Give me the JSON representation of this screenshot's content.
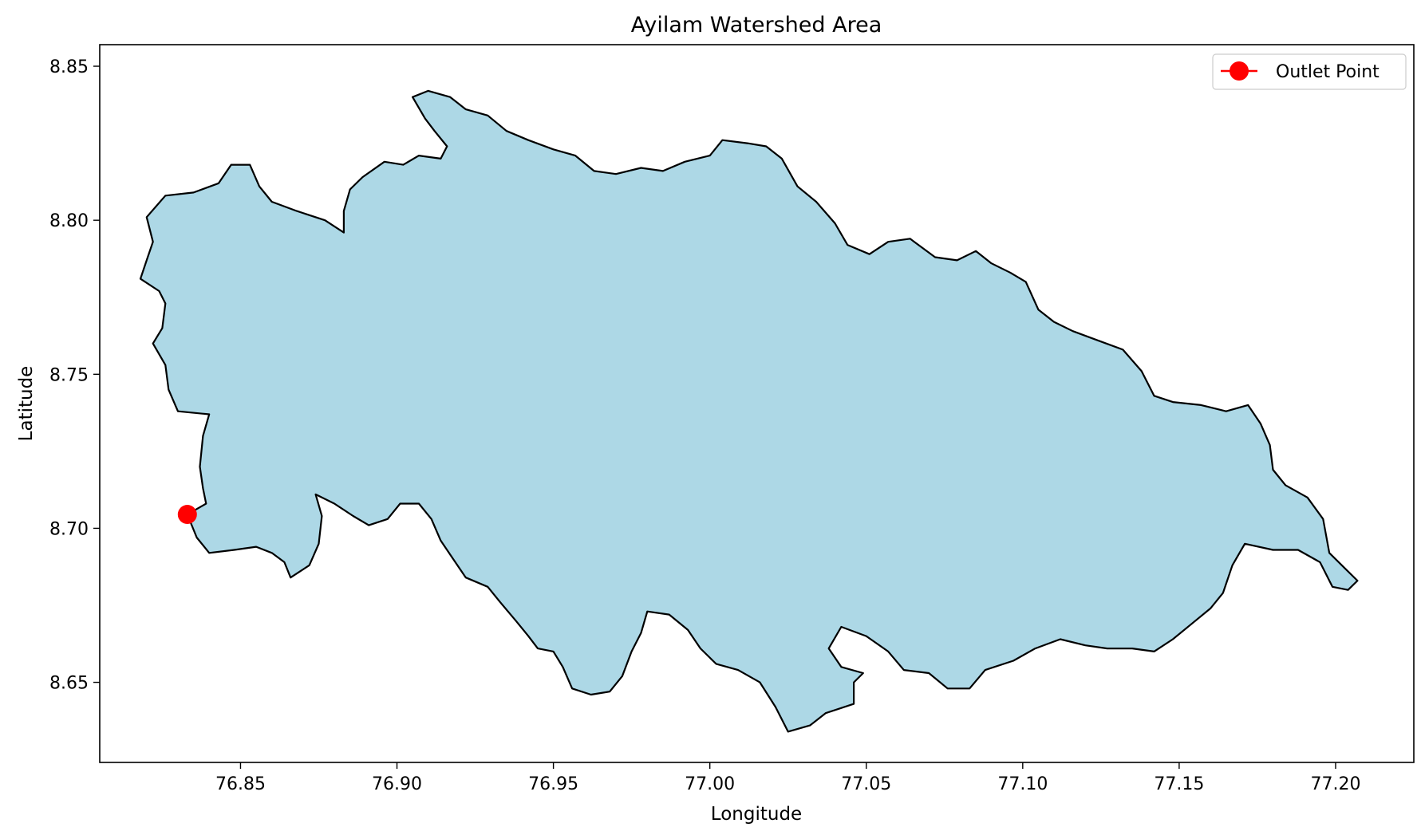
{
  "chart_data": {
    "type": "map",
    "title": "Ayilam Watershed Area",
    "xlabel": "Longitude",
    "ylabel": "Latitude",
    "xlim": [
      76.805,
      77.225
    ],
    "ylim": [
      8.624,
      8.857
    ],
    "x_ticks": [
      76.85,
      76.9,
      76.95,
      77.0,
      77.05,
      77.1,
      77.15,
      77.2
    ],
    "y_ticks": [
      8.65,
      8.7,
      8.75,
      8.8,
      8.85
    ],
    "grid": false,
    "legend": {
      "placement": "top-right",
      "entries": [
        "Outlet Point"
      ]
    },
    "colors": {
      "fill": "#add8e6",
      "edge": "#000000",
      "outlet": "#ff0000"
    },
    "outlet_point": {
      "name": "Outlet Point",
      "lon": 76.833,
      "lat": 8.7045
    },
    "watershed_boundary": [
      [
        76.833,
        8.7045
      ],
      [
        76.836,
        8.697
      ],
      [
        76.84,
        8.692
      ],
      [
        76.848,
        8.693
      ],
      [
        76.855,
        8.694
      ],
      [
        76.86,
        8.692
      ],
      [
        76.864,
        8.689
      ],
      [
        76.866,
        8.684
      ],
      [
        76.872,
        8.688
      ],
      [
        76.875,
        8.695
      ],
      [
        76.876,
        8.704
      ],
      [
        76.874,
        8.711
      ],
      [
        76.88,
        8.708
      ],
      [
        76.886,
        8.704
      ],
      [
        76.891,
        8.701
      ],
      [
        76.897,
        8.703
      ],
      [
        76.901,
        8.708
      ],
      [
        76.907,
        8.708
      ],
      [
        76.911,
        8.703
      ],
      [
        76.914,
        8.696
      ],
      [
        76.918,
        8.69
      ],
      [
        76.922,
        8.684
      ],
      [
        76.929,
        8.681
      ],
      [
        76.933,
        8.676
      ],
      [
        76.938,
        8.67
      ],
      [
        76.942,
        8.665
      ],
      [
        76.945,
        8.661
      ],
      [
        76.95,
        8.66
      ],
      [
        76.953,
        8.655
      ],
      [
        76.956,
        8.648
      ],
      [
        76.962,
        8.646
      ],
      [
        76.968,
        8.647
      ],
      [
        76.972,
        8.652
      ],
      [
        76.975,
        8.66
      ],
      [
        76.978,
        8.666
      ],
      [
        76.98,
        8.673
      ],
      [
        76.987,
        8.672
      ],
      [
        76.993,
        8.667
      ],
      [
        76.997,
        8.661
      ],
      [
        77.002,
        8.656
      ],
      [
        77.009,
        8.654
      ],
      [
        77.016,
        8.65
      ],
      [
        77.021,
        8.642
      ],
      [
        77.025,
        8.634
      ],
      [
        77.032,
        8.636
      ],
      [
        77.037,
        8.64
      ],
      [
        77.046,
        8.643
      ],
      [
        77.046,
        8.65
      ],
      [
        77.049,
        8.653
      ],
      [
        77.042,
        8.655
      ],
      [
        77.038,
        8.661
      ],
      [
        77.042,
        8.668
      ],
      [
        77.05,
        8.665
      ],
      [
        77.057,
        8.66
      ],
      [
        77.062,
        8.654
      ],
      [
        77.07,
        8.653
      ],
      [
        77.076,
        8.648
      ],
      [
        77.083,
        8.648
      ],
      [
        77.088,
        8.654
      ],
      [
        77.097,
        8.657
      ],
      [
        77.104,
        8.661
      ],
      [
        77.112,
        8.664
      ],
      [
        77.12,
        8.662
      ],
      [
        77.127,
        8.661
      ],
      [
        77.135,
        8.661
      ],
      [
        77.142,
        8.66
      ],
      [
        77.148,
        8.664
      ],
      [
        77.154,
        8.669
      ],
      [
        77.16,
        8.674
      ],
      [
        77.164,
        8.679
      ],
      [
        77.167,
        8.688
      ],
      [
        77.171,
        8.695
      ],
      [
        77.18,
        8.693
      ],
      [
        77.188,
        8.693
      ],
      [
        77.195,
        8.689
      ],
      [
        77.199,
        8.681
      ],
      [
        77.204,
        8.68
      ],
      [
        77.207,
        8.683
      ],
      [
        77.203,
        8.687
      ],
      [
        77.198,
        8.692
      ],
      [
        77.196,
        8.703
      ],
      [
        77.191,
        8.71
      ],
      [
        77.184,
        8.714
      ],
      [
        77.18,
        8.719
      ],
      [
        77.179,
        8.727
      ],
      [
        77.176,
        8.734
      ],
      [
        77.172,
        8.74
      ],
      [
        77.165,
        8.738
      ],
      [
        77.157,
        8.74
      ],
      [
        77.148,
        8.741
      ],
      [
        77.142,
        8.743
      ],
      [
        77.138,
        8.751
      ],
      [
        77.132,
        8.758
      ],
      [
        77.124,
        8.761
      ],
      [
        77.116,
        8.764
      ],
      [
        77.11,
        8.767
      ],
      [
        77.105,
        8.771
      ],
      [
        77.101,
        8.78
      ],
      [
        77.096,
        8.783
      ],
      [
        77.09,
        8.786
      ],
      [
        77.085,
        8.79
      ],
      [
        77.079,
        8.787
      ],
      [
        77.072,
        8.788
      ],
      [
        77.064,
        8.794
      ],
      [
        77.057,
        8.793
      ],
      [
        77.051,
        8.789
      ],
      [
        77.044,
        8.792
      ],
      [
        77.04,
        8.799
      ],
      [
        77.034,
        8.806
      ],
      [
        77.028,
        8.811
      ],
      [
        77.023,
        8.82
      ],
      [
        77.018,
        8.824
      ],
      [
        77.012,
        8.825
      ],
      [
        77.004,
        8.826
      ],
      [
        77.0,
        8.821
      ],
      [
        76.992,
        8.819
      ],
      [
        76.985,
        8.816
      ],
      [
        76.978,
        8.817
      ],
      [
        76.97,
        8.815
      ],
      [
        76.963,
        8.816
      ],
      [
        76.957,
        8.821
      ],
      [
        76.95,
        8.823
      ],
      [
        76.942,
        8.826
      ],
      [
        76.935,
        8.829
      ],
      [
        76.929,
        8.834
      ],
      [
        76.922,
        8.836
      ],
      [
        76.917,
        8.84
      ],
      [
        76.91,
        8.842
      ],
      [
        76.905,
        8.84
      ],
      [
        76.909,
        8.833
      ],
      [
        76.912,
        8.829
      ],
      [
        76.916,
        8.824
      ],
      [
        76.914,
        8.82
      ],
      [
        76.907,
        8.821
      ],
      [
        76.902,
        8.818
      ],
      [
        76.896,
        8.819
      ],
      [
        76.889,
        8.814
      ],
      [
        76.885,
        8.81
      ],
      [
        76.883,
        8.803
      ],
      [
        76.883,
        8.796
      ],
      [
        76.877,
        8.8
      ],
      [
        76.868,
        8.803
      ],
      [
        76.86,
        8.806
      ],
      [
        76.856,
        8.811
      ],
      [
        76.853,
        8.818
      ],
      [
        76.847,
        8.818
      ],
      [
        76.843,
        8.812
      ],
      [
        76.835,
        8.809
      ],
      [
        76.826,
        8.808
      ],
      [
        76.82,
        8.801
      ],
      [
        76.822,
        8.793
      ],
      [
        76.82,
        8.787
      ],
      [
        76.818,
        8.781
      ],
      [
        76.824,
        8.777
      ],
      [
        76.826,
        8.773
      ],
      [
        76.825,
        8.765
      ],
      [
        76.822,
        8.76
      ],
      [
        76.826,
        8.753
      ],
      [
        76.827,
        8.745
      ],
      [
        76.83,
        8.738
      ],
      [
        76.84,
        8.737
      ],
      [
        76.838,
        8.73
      ],
      [
        76.837,
        8.72
      ],
      [
        76.838,
        8.713
      ],
      [
        76.839,
        8.708
      ],
      [
        76.833,
        8.7045
      ]
    ]
  }
}
